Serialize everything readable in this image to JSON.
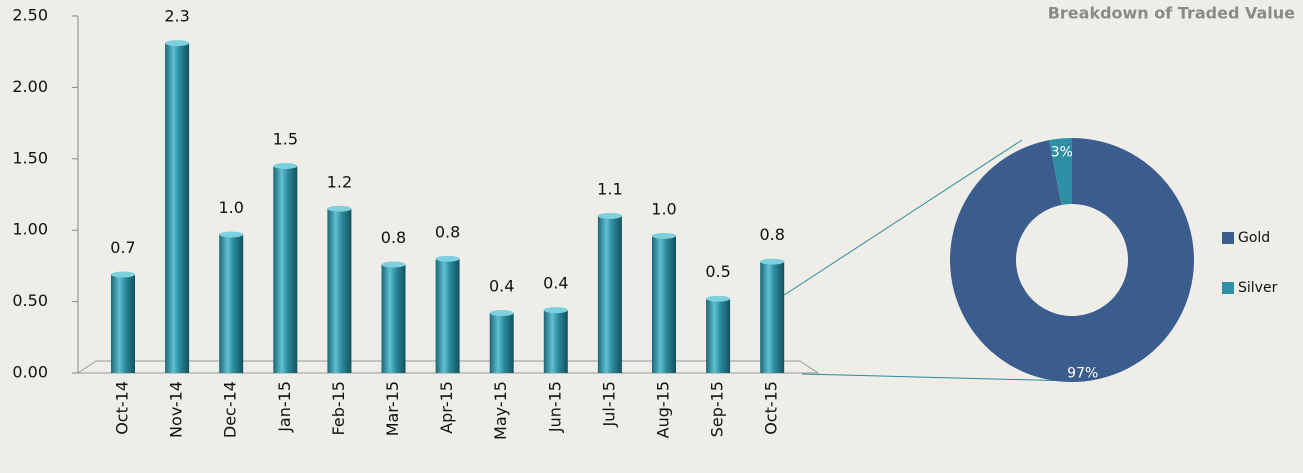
{
  "chart_data": [
    {
      "type": "bar",
      "categories": [
        "Oct-14",
        "Nov-14",
        "Dec-14",
        "Jan-15",
        "Feb-15",
        "Mar-15",
        "Apr-15",
        "May-15",
        "Jun-15",
        "Jul-15",
        "Aug-15",
        "Sep-15",
        "Oct-15"
      ],
      "values": [
        0.69,
        2.31,
        0.97,
        1.45,
        1.15,
        0.76,
        0.8,
        0.42,
        0.44,
        1.1,
        0.96,
        0.52,
        0.78
      ],
      "value_labels": [
        "0.7",
        "2.3",
        "1.0",
        "1.5",
        "1.2",
        "0.8",
        "0.8",
        "0.4",
        "0.4",
        "1.1",
        "1.0",
        "0.5",
        "0.8"
      ],
      "color": "#2b8a9c",
      "ylim": [
        0,
        2.5
      ],
      "yticks": [
        {
          "value": 0,
          "label": "0.00"
        },
        {
          "value": 0.5,
          "label": "0.50"
        },
        {
          "value": 1,
          "label": "1.00"
        },
        {
          "value": 1.5,
          "label": "1.50"
        },
        {
          "value": 2,
          "label": "2.00"
        },
        {
          "value": 2.5,
          "label": "2.50"
        }
      ]
    },
    {
      "type": "donut",
      "title": "Breakdown of Traded Value",
      "categories": [
        "Gold",
        "Silver"
      ],
      "values": [
        97,
        3
      ],
      "value_labels": [
        "97%",
        "3%"
      ],
      "colors": [
        "#3a5d8e",
        "#2f8fa4"
      ],
      "legend": "right"
    }
  ]
}
